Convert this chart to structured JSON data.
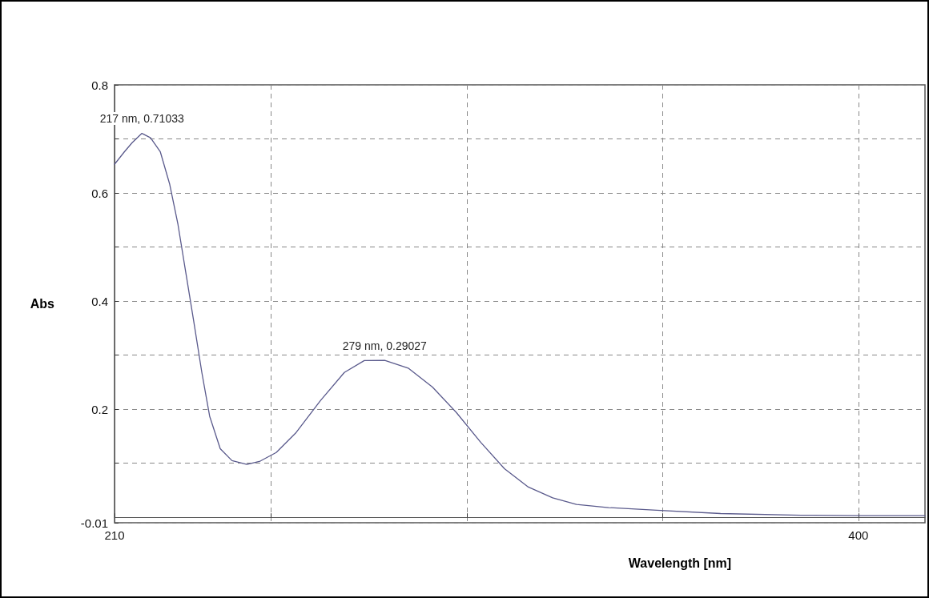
{
  "chart_data": {
    "type": "line",
    "xlabel": "Wavelength [nm]",
    "ylabel": "Abs",
    "x": [
      210,
      212.5,
      214.5,
      217,
      219.2,
      221.7,
      224.1,
      226.2,
      228.2,
      230.2,
      232.3,
      234.3,
      237,
      240,
      243.8,
      247.2,
      251.3,
      256.4,
      262.6,
      268.7,
      273.8,
      279,
      285,
      291.2,
      297.3,
      303.5,
      309.6,
      315.7,
      321.9,
      328,
      336.2,
      348.5,
      364.8,
      385.3,
      400,
      417
    ],
    "series": [
      {
        "color": "#5a5a8c",
        "values": [
          0.653,
          0.676,
          0.693,
          0.71033,
          0.702,
          0.676,
          0.616,
          0.542,
          0.453,
          0.364,
          0.268,
          0.187,
          0.127,
          0.105,
          0.098,
          0.104,
          0.12,
          0.157,
          0.216,
          0.268,
          0.29,
          0.29027,
          0.276,
          0.241,
          0.194,
          0.139,
          0.09,
          0.056,
          0.036,
          0.024,
          0.018,
          0.013,
          0.007,
          0.004,
          0.003,
          0.003
        ]
      }
    ],
    "xlim": [
      210,
      417
    ],
    "xticks": [
      210,
      {
        "value": 250,
        "label": null
      },
      {
        "value": 300,
        "label": null
      },
      {
        "value": 350,
        "label": null
      },
      400
    ],
    "ylim": [
      -0.01,
      0.8
    ],
    "yticks": [
      -0.01,
      {
        "value": 0.1,
        "label": null
      },
      0.2,
      {
        "value": 0.3,
        "label": null
      },
      0.4,
      {
        "value": 0.5,
        "label": null
      },
      0.6,
      {
        "value": 0.7,
        "label": null
      },
      0.8
    ],
    "annotations": [
      {
        "text": "217 nm, 0.71033",
        "x": 217,
        "y": 0.71033
      },
      {
        "text": "279 nm, 0.29027",
        "x": 279,
        "y": 0.29027
      }
    ],
    "grid": true,
    "marker": "none",
    "line_style": "solid"
  }
}
